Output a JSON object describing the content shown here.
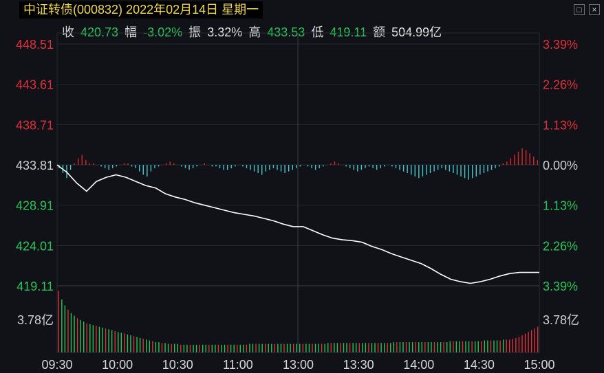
{
  "header": {
    "title": "中证转债(000832) 2022年02月14日 星期一",
    "win_restore": "□",
    "win_close": "×"
  },
  "stats": {
    "close_label": "收",
    "close_value": "420.73",
    "change_label": "幅",
    "change_value": "-3.02%",
    "amplitude_label": "振",
    "amplitude_value": "3.32%",
    "high_label": "高",
    "high_value": "433.53",
    "low_label": "低",
    "low_value": "419.11",
    "amount_label": "额",
    "amount_value": "504.99亿"
  },
  "colors": {
    "background": "#101217",
    "up": "#e0303a",
    "down": "#27c65a",
    "neutral": "#d0d0d0",
    "price_line": "#ffffff",
    "breadth_up": "#d8282c",
    "breadth_down": "#46c8d0",
    "grid": "#262a33"
  },
  "chart_data": {
    "type": "line",
    "title": "中证转债(000832) 2022年02月14日 星期一",
    "y_labels_left": [
      "448.51",
      "443.61",
      "438.71",
      "433.81",
      "428.91",
      "424.01",
      "419.11"
    ],
    "y_labels_right": [
      "3.39%",
      "2.26%",
      "1.13%",
      "0.00%",
      "1.13%",
      "2.26%",
      "3.39%"
    ],
    "x_labels": [
      "09:30",
      "10:00",
      "10:30",
      "11:00",
      "13:00",
      "13:30",
      "14:00",
      "14:30",
      "15:00"
    ],
    "ylim": [
      419.11,
      448.51
    ],
    "prev_close": 433.81,
    "price_series": {
      "times": [
        "09:30",
        "09:35",
        "09:40",
        "09:45",
        "09:50",
        "09:55",
        "10:00",
        "10:05",
        "10:10",
        "10:15",
        "10:20",
        "10:25",
        "10:30",
        "10:35",
        "10:40",
        "10:45",
        "10:50",
        "10:55",
        "11:00",
        "11:05",
        "11:10",
        "11:15",
        "11:20",
        "11:25",
        "11:30",
        "13:00",
        "13:05",
        "13:10",
        "13:15",
        "13:20",
        "13:25",
        "13:30",
        "13:35",
        "13:40",
        "13:45",
        "13:50",
        "13:55",
        "14:00",
        "14:05",
        "14:10",
        "14:15",
        "14:20",
        "14:25",
        "14:30",
        "14:35",
        "14:40",
        "14:45",
        "14:50",
        "14:55",
        "15:00"
      ],
      "values": [
        433.8,
        432.9,
        431.6,
        430.6,
        431.8,
        432.3,
        432.6,
        432.3,
        431.8,
        431.3,
        431.0,
        430.3,
        429.9,
        429.6,
        429.2,
        428.9,
        428.6,
        428.3,
        428.0,
        427.8,
        427.6,
        427.3,
        427.0,
        426.6,
        426.3,
        426.3,
        425.8,
        425.3,
        424.9,
        424.7,
        424.6,
        424.4,
        423.9,
        423.5,
        423.0,
        422.6,
        422.2,
        421.8,
        421.2,
        420.5,
        419.9,
        419.6,
        419.4,
        419.6,
        419.9,
        420.3,
        420.6,
        420.73,
        420.73,
        420.73
      ]
    },
    "breadth_series": {
      "label": "",
      "up_color_meaning": "up",
      "values": [
        -2,
        -5,
        -8,
        -3,
        1,
        4,
        6,
        3,
        1,
        1,
        0,
        -1,
        -2,
        -3,
        -2,
        -1,
        0,
        1,
        1,
        -1,
        -2,
        -4,
        -6,
        -7,
        -4,
        -2,
        -1,
        0,
        1,
        2,
        1,
        0,
        -1,
        -2,
        -3,
        -2,
        -1,
        0,
        1,
        0,
        -1,
        -1,
        -2,
        -3,
        -3,
        -2,
        -1,
        0,
        -1,
        -2,
        -3,
        -4,
        -5,
        -6,
        -4,
        -3,
        -2,
        -3,
        -4,
        -5,
        -4,
        -3,
        -2,
        -1,
        0,
        -1,
        -2,
        -3,
        -2,
        -1,
        0,
        1,
        2,
        1,
        0,
        -1,
        -2,
        -3,
        -4,
        -3,
        -2,
        -1,
        -2,
        -3,
        -2,
        -1,
        0,
        -1,
        -2,
        -3,
        -4,
        -5,
        -6,
        -7,
        -8,
        -7,
        -6,
        -5,
        -4,
        -3,
        -2,
        -3,
        -4,
        -5,
        -6,
        -7,
        -8,
        -9,
        -8,
        -7,
        -6,
        -5,
        -4,
        -3,
        -2,
        -1,
        1,
        2,
        4,
        6,
        8,
        10,
        9,
        7,
        5,
        3
      ]
    },
    "volume": {
      "ylabel": "3.78亿",
      "scale_ref": 3.78,
      "values": [
        7.2,
        6.2,
        5.5,
        5.0,
        4.6,
        4.3,
        4.0,
        3.8,
        3.6,
        3.4,
        3.3,
        3.2,
        3.1,
        3.0,
        2.9,
        2.8,
        2.7,
        2.6,
        2.5,
        2.4,
        2.3,
        2.2,
        2.1,
        2.0,
        1.9,
        1.8,
        1.7,
        1.6,
        1.5,
        1.4,
        1.3,
        1.2,
        1.2,
        1.1,
        1.1,
        1.0,
        1.0,
        1.0,
        1.0,
        0.9,
        0.9,
        0.9,
        0.9,
        0.9,
        0.9,
        0.9,
        0.9,
        0.9,
        0.9,
        0.9,
        0.9,
        0.9,
        0.9,
        0.9,
        0.9,
        0.9,
        0.9,
        0.9,
        0.9,
        0.9,
        0.9,
        1.0,
        1.0,
        1.0,
        1.0,
        1.0,
        1.0,
        1.0,
        1.0,
        1.0,
        1.0,
        1.0,
        1.0,
        1.0,
        1.0,
        1.0,
        1.0,
        1.0,
        1.0,
        1.0,
        1.0,
        1.0,
        1.0,
        1.0,
        1.0,
        1.0,
        1.1,
        1.1,
        1.1,
        1.1,
        1.1,
        1.1,
        1.1,
        1.1,
        1.1,
        1.1,
        1.1,
        1.1,
        1.1,
        1.1,
        1.1,
        1.1,
        1.1,
        1.1,
        1.1,
        1.1,
        1.1,
        1.2,
        1.2,
        1.2,
        1.2,
        1.2,
        1.2,
        1.2,
        1.2,
        1.2,
        1.2,
        1.2,
        1.2,
        1.2,
        1.2,
        1.2,
        1.2,
        1.2,
        1.2,
        1.3,
        1.3,
        1.3,
        1.3,
        1.3,
        1.3,
        1.3,
        1.3,
        1.3,
        1.3,
        1.3,
        1.4,
        1.4,
        1.4,
        1.4,
        1.4,
        1.4,
        1.5,
        1.5,
        1.5,
        1.6,
        1.7,
        1.8,
        2.0,
        2.2,
        2.4,
        2.6,
        2.8,
        3.0
      ]
    }
  }
}
